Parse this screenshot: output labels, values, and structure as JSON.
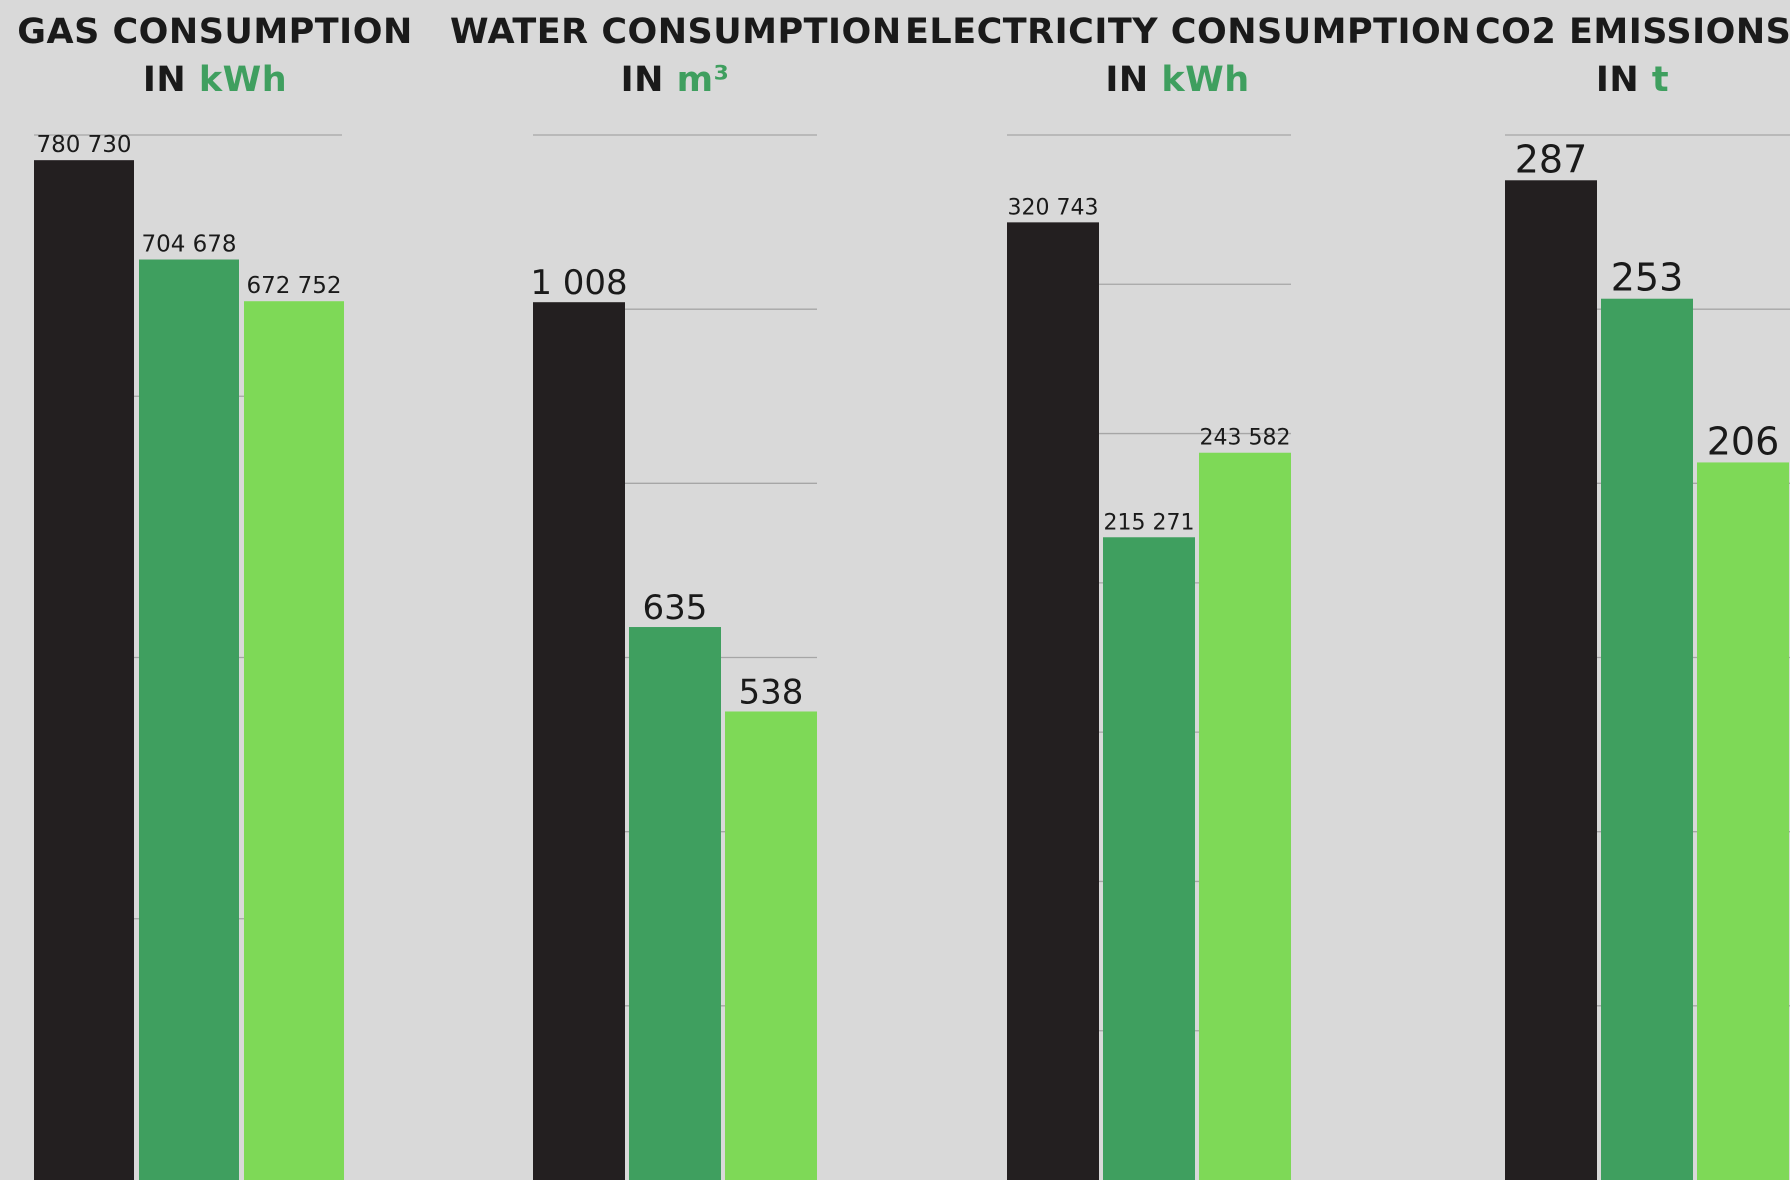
{
  "chart_data": [
    {
      "type": "bar",
      "title_line1": "GAS CONSUMPTION",
      "title_line2_prefix": "IN",
      "unit": "kWh",
      "values": [
        780730,
        704678,
        672752
      ],
      "value_labels": [
        "780 730",
        "704 678",
        "672 752"
      ],
      "ylim": [
        0,
        800000
      ],
      "grid": true
    },
    {
      "type": "bar",
      "title_line1": "WATER CONSUMPTION",
      "title_line2_prefix": "IN",
      "unit": "m³",
      "values": [
        1008,
        635,
        538
      ],
      "value_labels": [
        "1 008",
        "635",
        "538"
      ],
      "ylim": [
        0,
        1200
      ],
      "grid": true
    },
    {
      "type": "bar",
      "title_line1": "ELECTRICITY CONSUMPTION",
      "title_line2_prefix": "IN",
      "unit": "kWh",
      "values": [
        320743,
        215271,
        243582
      ],
      "value_labels": [
        "320 743",
        "215 271",
        "243 582"
      ],
      "ylim": [
        0,
        350000
      ],
      "grid": true
    },
    {
      "type": "bar",
      "title_line1": "CO2 EMISSIONS",
      "title_line2_prefix": "IN",
      "unit": "t",
      "values": [
        287,
        253,
        206
      ],
      "value_labels": [
        "287",
        "253",
        "206"
      ],
      "ylim": [
        0,
        300
      ],
      "grid": true
    }
  ],
  "colors": {
    "series": [
      "#231f20",
      "#3f9f5f",
      "#7ed957"
    ],
    "unit_accent": "#3f9f5f",
    "grid": "#a6a6a6",
    "background": "#d9d9d9"
  }
}
